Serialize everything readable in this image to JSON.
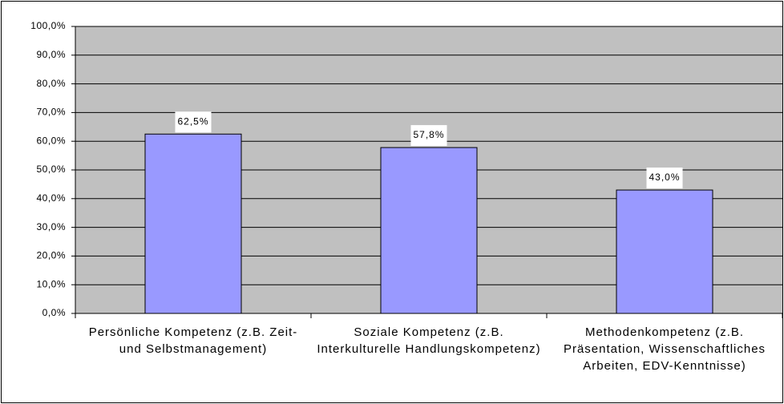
{
  "chart_data": {
    "type": "bar",
    "categories": [
      "Persönliche Kompetenz (z.B. Zeit- und Selbstmanagement)",
      "Soziale Kompetenz (z.B. Interkulturelle Handlungskompetenz)",
      "Methodenkompetenz (z.B. Präsentation, Wissenschaftliches Arbeiten, EDV-Kenntnisse)"
    ],
    "values": [
      62.5,
      57.8,
      43.0
    ],
    "value_labels": [
      "62,5%",
      "57,8%",
      "43,0%"
    ],
    "color": "#9999ff",
    "ylim": [
      0,
      100
    ],
    "yticks": [
      {
        "value": 0,
        "label": "0,0%"
      },
      {
        "value": 10,
        "label": "10,0%"
      },
      {
        "value": 20,
        "label": "20,0%"
      },
      {
        "value": 30,
        "label": "30,0%"
      },
      {
        "value": 40,
        "label": "40,0%"
      },
      {
        "value": 50,
        "label": "50,0%"
      },
      {
        "value": 60,
        "label": "60,0%"
      },
      {
        "value": 70,
        "label": "70,0%"
      },
      {
        "value": 80,
        "label": "80,0%"
      },
      {
        "value": 90,
        "label": "90,0%"
      },
      {
        "value": 100,
        "label": "100,0%"
      }
    ],
    "grid": true
  }
}
